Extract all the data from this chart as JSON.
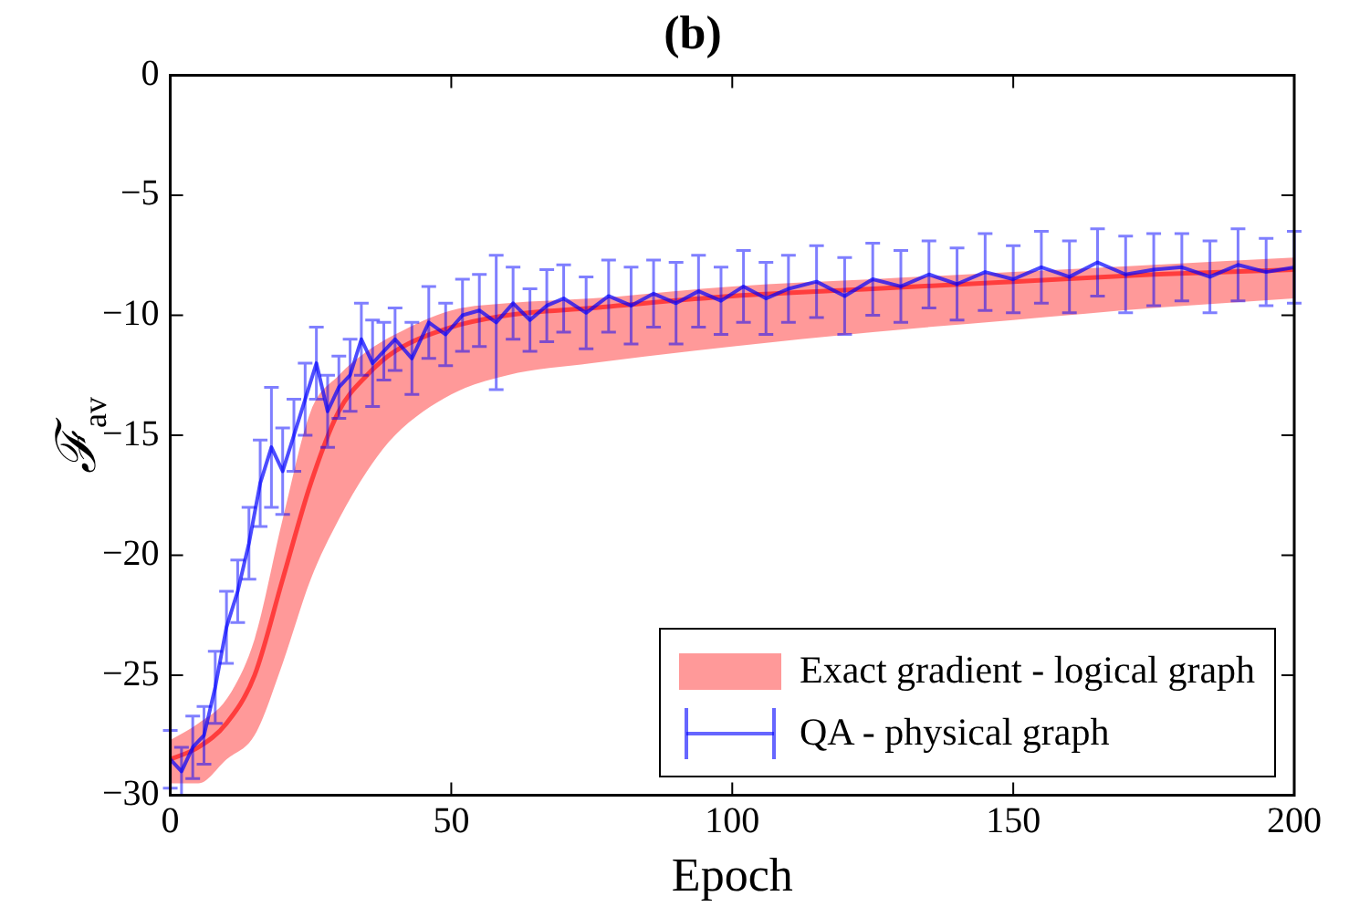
{
  "chart_data": {
    "type": "line",
    "title": "(b)",
    "xlabel": "Epoch",
    "ylabel": "ℱ$_{av}$",
    "xlim": [
      0,
      200
    ],
    "xticks": [
      0,
      50,
      100,
      150,
      200
    ],
    "ylim": [
      -30,
      0
    ],
    "yticks": [
      {
        "value": -30,
        "label": "−30"
      },
      {
        "value": -25,
        "label": "−25"
      },
      {
        "value": -20,
        "label": "−20"
      },
      {
        "value": -15,
        "label": "−15"
      },
      {
        "value": -10,
        "label": "−10"
      },
      {
        "value": -5,
        "label": "−5"
      },
      0
    ],
    "grid": false,
    "legend": "bottom right",
    "marker": "none",
    "line_style": "solid",
    "series": [
      {
        "name": "Exact gradient - logical graph",
        "color": "#ff0000",
        "x": [
          0,
          5,
          10,
          15,
          20,
          25,
          30,
          35,
          40,
          50,
          60,
          75,
          100,
          125,
          150,
          175,
          200
        ],
        "values": [
          -28.5,
          -28,
          -27,
          -25,
          -21,
          -17,
          -14,
          -12.5,
          -11.5,
          -10.5,
          -10,
          -9.7,
          -9.2,
          -8.9,
          -8.6,
          -8.3,
          -8.1
        ],
        "lower": [
          -29.5,
          -29.5,
          -28.5,
          -27.5,
          -24.5,
          -21,
          -18.5,
          -16.5,
          -15,
          -13.3,
          -12.5,
          -12,
          -11.3,
          -10.7,
          -10.2,
          -9.7,
          -9.3
        ],
        "upper": [
          -27.7,
          -27,
          -26,
          -23.5,
          -18.5,
          -14,
          -12.5,
          -11.5,
          -10.8,
          -9.8,
          -9.5,
          -9.3,
          -8.8,
          -8.5,
          -8.2,
          -7.9,
          -7.6
        ]
      },
      {
        "name": "QA - physical graph",
        "color": "#0000ff",
        "x": [
          0,
          2,
          4,
          6,
          8,
          10,
          12,
          14,
          16,
          18,
          20,
          22,
          24,
          26,
          28,
          30,
          32,
          34,
          36,
          38,
          40,
          43,
          46,
          49,
          52,
          55,
          58,
          61,
          64,
          67,
          70,
          74,
          78,
          82,
          86,
          90,
          94,
          98,
          102,
          106,
          110,
          115,
          120,
          125,
          130,
          135,
          140,
          145,
          150,
          155,
          160,
          165,
          170,
          175,
          180,
          185,
          190,
          195,
          200
        ],
        "values": [
          -28.5,
          -29,
          -28,
          -27.5,
          -25.5,
          -23,
          -21.5,
          -19.5,
          -17,
          -15.5,
          -16.5,
          -15,
          -13.5,
          -12,
          -14,
          -13,
          -12.5,
          -11,
          -12,
          -11.5,
          -11,
          -11.8,
          -10.3,
          -10.8,
          -10,
          -9.8,
          -10.3,
          -9.5,
          -10.2,
          -9.6,
          -9.3,
          -9.9,
          -9.2,
          -9.6,
          -9.1,
          -9.5,
          -9,
          -9.4,
          -8.8,
          -9.3,
          -8.9,
          -8.6,
          -9.2,
          -8.5,
          -8.8,
          -8.3,
          -8.7,
          -8.2,
          -8.5,
          -8,
          -8.4,
          -7.8,
          -8.3,
          -8.1,
          -8,
          -8.4,
          -7.9,
          -8.2,
          -8
        ],
        "errors": [
          1.2,
          1,
          1.3,
          1.2,
          1.5,
          1.5,
          1.3,
          1.5,
          1.8,
          2.5,
          1.8,
          1.5,
          1.5,
          1.5,
          1.5,
          1.3,
          1.5,
          1.5,
          1.8,
          1.2,
          1.3,
          1.5,
          1.5,
          1.3,
          1.5,
          1.5,
          2.8,
          1.5,
          1.3,
          1.5,
          1.4,
          1.5,
          1.5,
          1.6,
          1.4,
          1.7,
          1.5,
          1.4,
          1.5,
          1.5,
          1.4,
          1.5,
          1.6,
          1.5,
          1.5,
          1.4,
          1.5,
          1.6,
          1.4,
          1.5,
          1.5,
          1.4,
          1.6,
          1.5,
          1.4,
          1.5,
          1.5,
          1.4,
          1.5
        ]
      }
    ]
  }
}
